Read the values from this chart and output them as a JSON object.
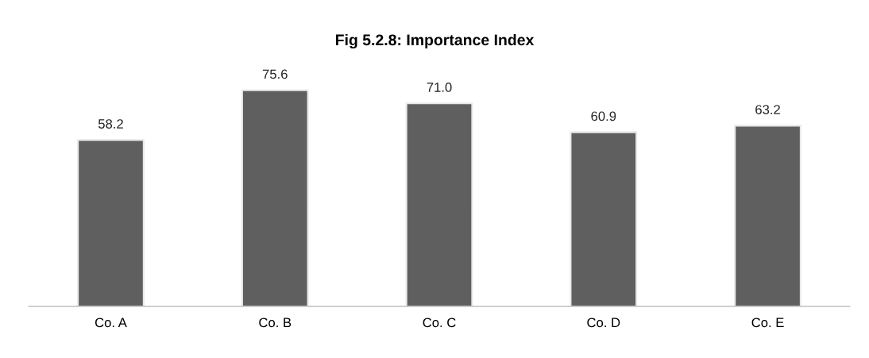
{
  "chart_data": {
    "type": "bar",
    "title": "Fig 5.2.8: Importance Index",
    "categories": [
      "Co. A",
      "Co. B",
      "Co. C",
      "Co. D",
      "Co. E"
    ],
    "values": [
      58.2,
      75.6,
      71.0,
      60.9,
      63.2
    ],
    "value_labels": [
      "58.2",
      "75.6",
      "71.0",
      "60.9",
      "63.2"
    ],
    "color": "#5f5f5f",
    "grid": false,
    "legend": false
  }
}
